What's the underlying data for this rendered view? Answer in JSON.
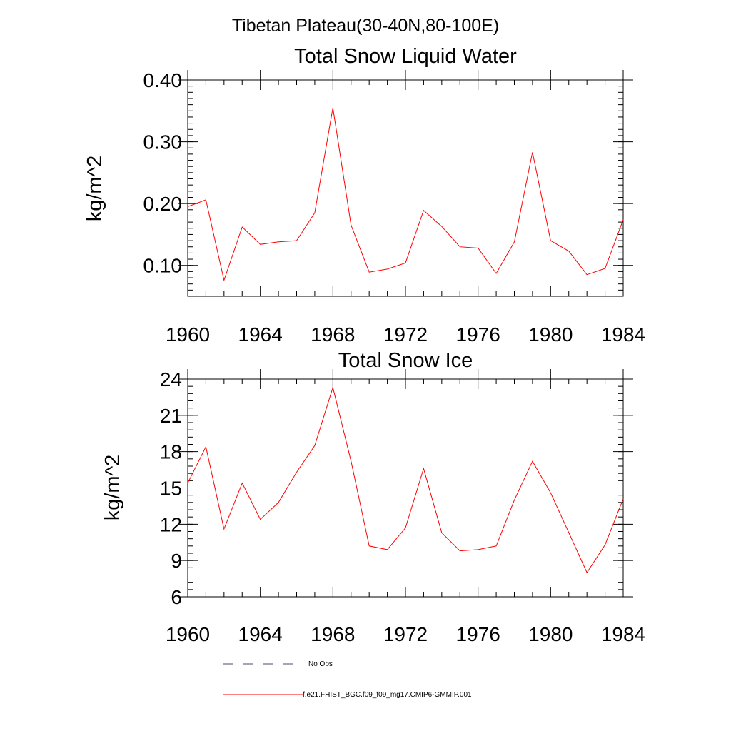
{
  "figure": {
    "suptitle": "Tibetan Plateau(30-40N,80-100E)"
  },
  "legend": {
    "placement": "bottom",
    "entries": [
      {
        "label": "No Obs",
        "style": "dashed",
        "color": "#4a4a6a"
      },
      {
        "label": "f.e21.FHIST_BGC.f09_f09_mg17.CMIP6-GMMIP.001",
        "style": "solid",
        "color": "#ff0000"
      }
    ]
  },
  "chart_data": [
    {
      "type": "line",
      "title": "Total Snow Liquid Water",
      "xlabel": "",
      "ylabel": "kg/m^2",
      "xlim": [
        1960,
        1984
      ],
      "ylim": [
        0.05,
        0.4
      ],
      "xticks": [
        1960,
        1964,
        1968,
        1972,
        1976,
        1980,
        1984
      ],
      "xtick_labels": [
        "1960",
        "1964",
        "1968",
        "1972",
        "1976",
        "1980",
        "1984"
      ],
      "yticks": [
        0.1,
        0.2,
        0.3,
        0.4
      ],
      "ytick_labels": [
        "0.10",
        "0.20",
        "0.30",
        "0.40"
      ],
      "grid": false,
      "series": [
        {
          "name": "f.e21.FHIST_BGC.f09_f09_mg17.CMIP6-GMMIP.001",
          "color": "#ff0000",
          "x": [
            1960,
            1961,
            1962,
            1963,
            1964,
            1965,
            1966,
            1967,
            1968,
            1969,
            1970,
            1971,
            1972,
            1973,
            1974,
            1975,
            1976,
            1977,
            1978,
            1979,
            1980,
            1981,
            1982,
            1983,
            1984
          ],
          "values": [
            0.195,
            0.206,
            0.076,
            0.162,
            0.134,
            0.138,
            0.14,
            0.185,
            0.355,
            0.165,
            0.089,
            0.094,
            0.104,
            0.189,
            0.163,
            0.13,
            0.128,
            0.087,
            0.138,
            0.283,
            0.14,
            0.123,
            0.085,
            0.095,
            0.174
          ]
        }
      ]
    },
    {
      "type": "line",
      "title": "Total Snow Ice",
      "xlabel": "",
      "ylabel": "kg/m^2",
      "xlim": [
        1960,
        1984
      ],
      "ylim": [
        6,
        24
      ],
      "xticks": [
        1960,
        1964,
        1968,
        1972,
        1976,
        1980,
        1984
      ],
      "xtick_labels": [
        "1960",
        "1964",
        "1968",
        "1972",
        "1976",
        "1980",
        "1984"
      ],
      "yticks": [
        6,
        9,
        12,
        15,
        18,
        21,
        24
      ],
      "ytick_labels": [
        "6",
        "9",
        "12",
        "15",
        "18",
        "21",
        "24"
      ],
      "grid": false,
      "series": [
        {
          "name": "f.e21.FHIST_BGC.f09_f09_mg17.CMIP6-GMMIP.001",
          "color": "#ff0000",
          "x": [
            1960,
            1961,
            1962,
            1963,
            1964,
            1965,
            1966,
            1967,
            1968,
            1969,
            1970,
            1971,
            1972,
            1973,
            1974,
            1975,
            1976,
            1977,
            1978,
            1979,
            1980,
            1981,
            1982,
            1983,
            1984
          ],
          "values": [
            15.4,
            18.4,
            11.6,
            15.4,
            12.4,
            13.8,
            16.3,
            18.5,
            23.3,
            17.2,
            10.2,
            9.9,
            11.7,
            16.6,
            11.3,
            9.8,
            9.9,
            10.2,
            14.0,
            17.2,
            14.6,
            11.3,
            8.0,
            10.3,
            14.1
          ]
        }
      ]
    }
  ]
}
